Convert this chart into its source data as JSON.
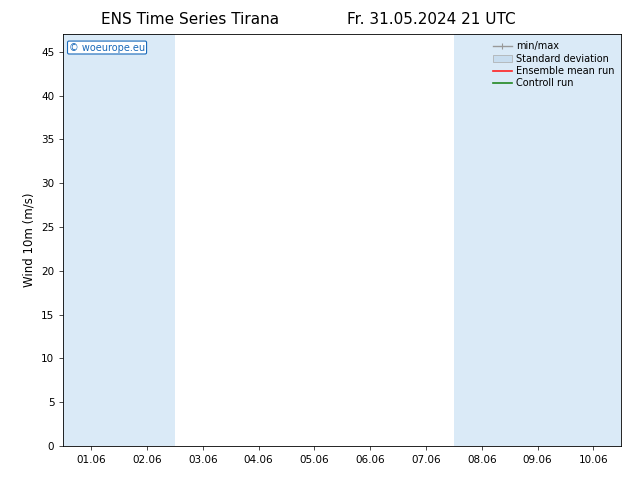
{
  "title_left": "ENS Time Series Tirana",
  "title_right": "Fr. 31.05.2024 21 UTC",
  "ylabel": "Wind 10m (m/s)",
  "watermark": "© woeurope.eu",
  "xtick_labels": [
    "01.06",
    "02.06",
    "03.06",
    "04.06",
    "05.06",
    "06.06",
    "07.06",
    "08.06",
    "09.06",
    "10.06"
  ],
  "ytick_values": [
    0,
    5,
    10,
    15,
    20,
    25,
    30,
    35,
    40,
    45
  ],
  "ylim": [
    0,
    47
  ],
  "xlim": [
    -0.5,
    9.5
  ],
  "background_color": "#ffffff",
  "plot_bg_color": "#ffffff",
  "shaded_bands": [
    {
      "x_start": -0.5,
      "x_end": 0.5
    },
    {
      "x_start": 0.5,
      "x_end": 1.5
    },
    {
      "x_start": 6.5,
      "x_end": 7.5
    },
    {
      "x_start": 7.5,
      "x_end": 8.5
    },
    {
      "x_start": 8.5,
      "x_end": 9.5
    }
  ],
  "shaded_color": "#daeaf7",
  "title_fontsize": 11,
  "tick_fontsize": 7.5,
  "ylabel_fontsize": 8.5,
  "watermark_color": "#1a6aba",
  "grid_color": "#dddddd"
}
